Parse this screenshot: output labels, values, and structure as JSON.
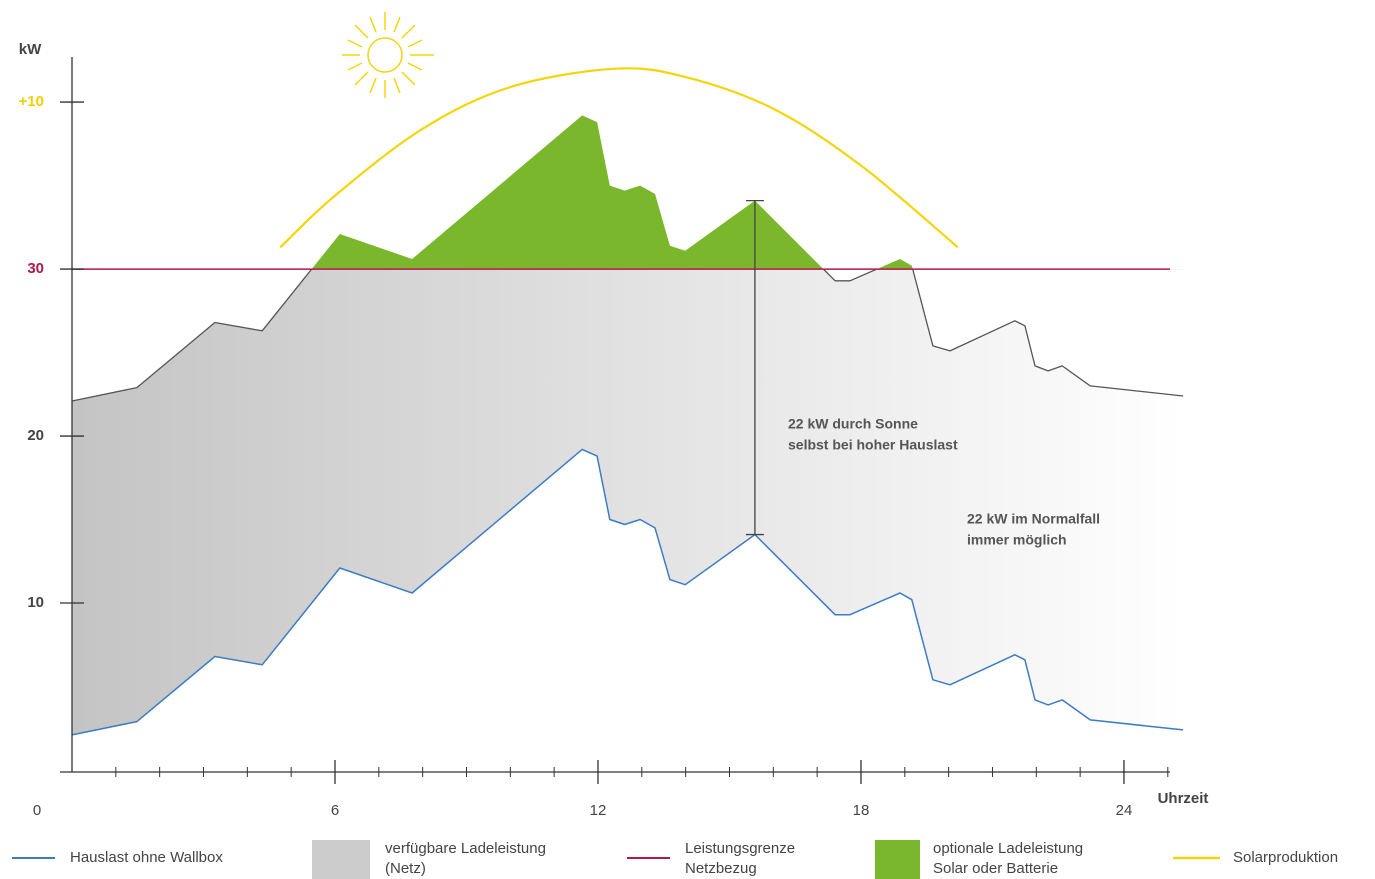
{
  "chart_data": {
    "type": "load_band",
    "ylabel": "kW",
    "xlabel": "Uhrzeit",
    "xlim": [
      0,
      25.05
    ],
    "ylim": [
      0,
      42.7
    ],
    "xticks": [
      0,
      6,
      12,
      18,
      24
    ],
    "yticks": [
      10,
      20,
      30,
      {
        "value": 40,
        "label": "+10"
      }
    ],
    "ytick_colors": [
      "#444444",
      "#444444",
      "#b5164f",
      "#f2cf00"
    ],
    "x": [
      0,
      1.48,
      3.26,
      4.34,
      6.11,
      7.76,
      11.64,
      11.98,
      12.27,
      12.61,
      12.96,
      13.3,
      13.64,
      13.99,
      15.58,
      17.41,
      17.75,
      18.89,
      19.16,
      19.64,
      20.03,
      21.51,
      21.74,
      21.97,
      22.27,
      22.59,
      23.23,
      25.35
    ],
    "series": [
      {
        "name": "Hauslast ohne Wallbox",
        "color": "#3b7cc4",
        "values": [
          2.1,
          2.9,
          6.8,
          6.3,
          12.1,
          10.6,
          19.2,
          18.8,
          15.0,
          14.7,
          15.0,
          14.5,
          11.4,
          11.1,
          14.1,
          9.3,
          9.3,
          10.6,
          10.2,
          5.4,
          5.1,
          6.9,
          6.6,
          4.2,
          3.9,
          4.2,
          3.0,
          2.4
        ]
      },
      {
        "name": [
          "verfügbare Ladeleistung",
          "(Netz)"
        ],
        "color": "#cccccc",
        "line_color": "#555555",
        "values": [
          22.1,
          22.9,
          26.8,
          26.3,
          32.1,
          30.6,
          39.2,
          38.8,
          35.0,
          34.7,
          35.0,
          34.5,
          31.4,
          31.1,
          34.1,
          29.3,
          29.3,
          30.6,
          30.2,
          25.4,
          25.1,
          26.9,
          26.6,
          24.2,
          23.9,
          24.2,
          23.0,
          22.4
        ]
      },
      {
        "name": [
          "Leistungsgrenze",
          "Netzbezug"
        ],
        "color": "#b5164f",
        "value": 30
      },
      {
        "name": [
          "optionale Ladeleistung",
          "Solar oder Batterie"
        ],
        "color": "#7ab72c"
      },
      {
        "name": "Solarproduktion",
        "color": "#f5d50a",
        "x": [
          4.75,
          6,
          8,
          10,
          12.39,
          14,
          16,
          18,
          20.21
        ],
        "values": [
          31.3,
          34.4,
          38.4,
          40.9,
          42.0,
          41.5,
          39.6,
          36.2,
          31.3
        ]
      }
    ],
    "annotations": [
      {
        "text": [
          "22 kW durch Sonne",
          "selbst bei hoher Hauslast"
        ]
      },
      {
        "text": [
          "22 kW im Normalfall",
          "immer möglich"
        ]
      }
    ]
  }
}
